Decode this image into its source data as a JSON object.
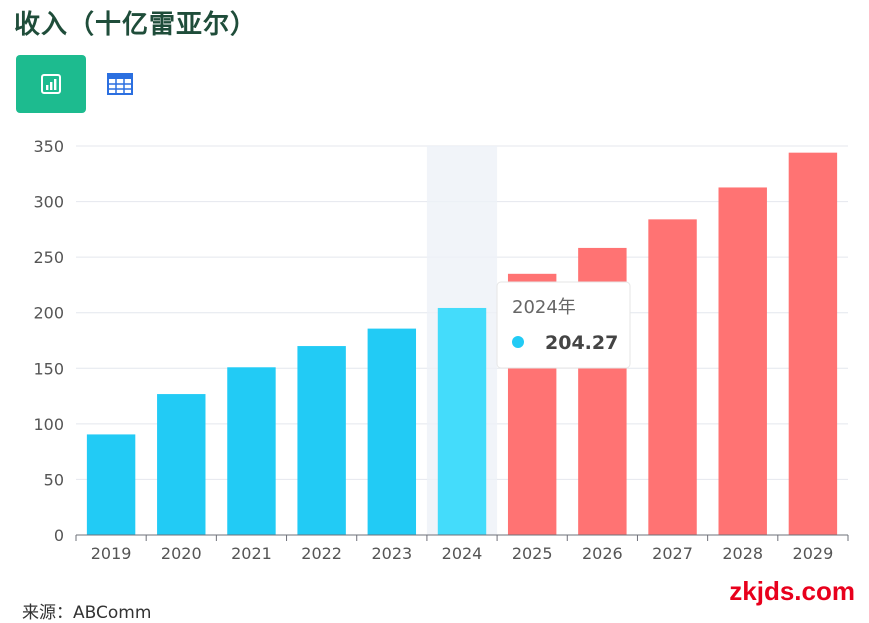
{
  "title": "收入（十亿雷亚尔）",
  "toolbar": {
    "chart_icon": "bar-chart-icon",
    "table_icon": "table-grid-icon",
    "active_color": "#1dbb8f"
  },
  "chart_data": {
    "type": "bar",
    "categories": [
      "2019",
      "2020",
      "2021",
      "2022",
      "2023",
      "2024",
      "2025",
      "2026",
      "2027",
      "2028",
      "2029"
    ],
    "values": [
      90.5,
      126.8,
      150.9,
      170.0,
      185.7,
      204.27,
      235.0,
      258.3,
      284.0,
      312.7,
      344.0
    ],
    "colors": [
      "#22cbf5",
      "#22cbf5",
      "#22cbf5",
      "#22cbf5",
      "#22cbf5",
      "#44dcfb",
      "#ff7373",
      "#ff7373",
      "#ff7373",
      "#ff7373",
      "#ff7373"
    ],
    "ylim": [
      0,
      350
    ],
    "yticks": [
      "0",
      "50",
      "100",
      "150",
      "200",
      "250",
      "300",
      "350"
    ],
    "grid": true,
    "xlabel": "",
    "ylabel": "",
    "highlight_index": 5
  },
  "tooltip": {
    "label": "2024年",
    "value": "204.27",
    "marker_color": "#22cbf5"
  },
  "source": "来源：ABComm",
  "watermark": "zkjds.com"
}
